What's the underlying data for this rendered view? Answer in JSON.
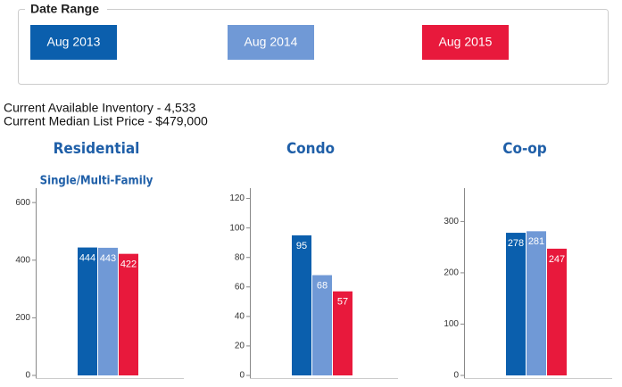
{
  "date_range": {
    "legend": "Date Range",
    "buttons": [
      {
        "label": "Aug 2013",
        "color": "#0b5fad"
      },
      {
        "label": "Aug 2014",
        "color": "#7099d6"
      },
      {
        "label": "Aug 2015",
        "color": "#e8193c"
      }
    ]
  },
  "info": [
    "Current Available Inventory - 4,533",
    "Current Median List Price - $479,000"
  ],
  "chart_data": [
    {
      "type": "bar",
      "title": "Residential",
      "subtitle": "Single/Multi-Family",
      "values": [
        444,
        443,
        422
      ],
      "colors": [
        "#0b5fad",
        "#7099d6",
        "#e8193c"
      ],
      "ylim": [
        0,
        650
      ],
      "yticks": [
        0,
        200,
        400,
        600
      ]
    },
    {
      "type": "bar",
      "title": "Condo",
      "values": [
        95,
        68,
        57
      ],
      "colors": [
        "#0b5fad",
        "#7099d6",
        "#e8193c"
      ],
      "ylim": [
        0,
        127
      ],
      "yticks": [
        0,
        20,
        40,
        60,
        80,
        100,
        120
      ]
    },
    {
      "type": "bar",
      "title": "Co-op",
      "values": [
        278,
        281,
        247
      ],
      "colors": [
        "#0b5fad",
        "#7099d6",
        "#e8193c"
      ],
      "ylim": [
        0,
        365
      ],
      "yticks": [
        0,
        100,
        200,
        300
      ]
    }
  ]
}
